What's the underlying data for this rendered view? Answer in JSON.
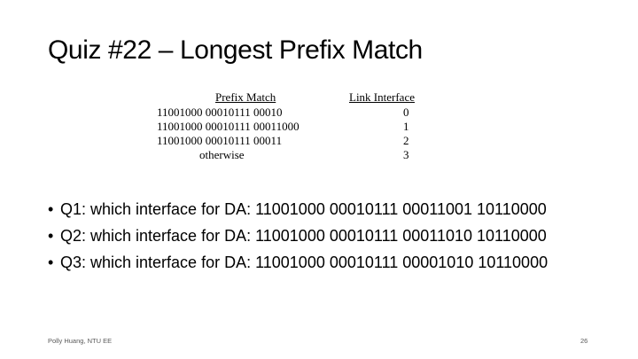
{
  "slide": {
    "title": "Quiz #22 – Longest Prefix Match",
    "table": {
      "headers": {
        "prefix": "Prefix Match",
        "link": "Link Interface"
      },
      "rows": [
        {
          "prefix": "11001000 00010111 00010",
          "iface": "0"
        },
        {
          "prefix": "11001000 00010111 00011000",
          "iface": "1"
        },
        {
          "prefix": "11001000 00010111 00011",
          "iface": "2"
        },
        {
          "prefix": "otherwise",
          "iface": "3"
        }
      ]
    },
    "bullets": [
      {
        "symbol": "•",
        "text": "Q1: which interface for DA: 11001000 00010111 00011001 10110000"
      },
      {
        "symbol": "•",
        "text": "Q2: which interface for DA: 11001000 00010111 00011010 10110000"
      },
      {
        "symbol": "•",
        "text": "Q3: which interface for DA: 11001000 00010111 00001010 10110000"
      }
    ],
    "footer": {
      "author": "Polly Huang, NTU EE",
      "page_number": "26"
    }
  }
}
